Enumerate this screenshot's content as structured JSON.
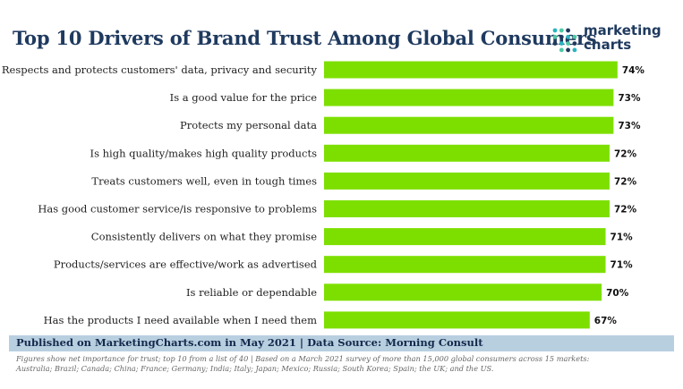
{
  "header": {
    "title": "Top 10 Drivers of Brand Trust Among Global Consumers"
  },
  "logo": {
    "line1": "marketing",
    "line2": "charts",
    "dot_colors": [
      "#2bb3c0",
      "#4cc9a4",
      "#1f3a5f"
    ]
  },
  "chart_data": {
    "type": "bar",
    "orientation": "horizontal",
    "categories": [
      "Respects and protects customers' data, privacy and security",
      "Is a good value for the price",
      "Protects my personal data",
      "Is high quality/makes high quality products",
      "Treats customers well, even in tough times",
      "Has good customer service/is responsive to problems",
      "Consistently delivers on what they promise",
      "Products/services are effective/work as advertised",
      "Is reliable or dependable",
      "Has the products I need available when I need them"
    ],
    "values": [
      74,
      73,
      73,
      72,
      72,
      72,
      71,
      71,
      70,
      67
    ],
    "value_labels": [
      "74%",
      "73%",
      "73%",
      "72%",
      "72%",
      "72%",
      "71%",
      "71%",
      "70%",
      "67%"
    ],
    "xlim": [
      0,
      100
    ],
    "grid": false,
    "bar_color": "#7ddf00"
  },
  "footer": {
    "source": "Published on MarketingCharts.com in May 2021 | Data Source: Morning Consult",
    "note_line1": "Figures show net importance for trust; top 10 from a list of 40 | Based on a March 2021 survey of more than 15,000 global consumers across 15 markets:",
    "note_line2": "Australia; Brazil; Canada; China; France; Germany; India; Italy; Japan; Mexico; Russia; South Korea; Spain; the UK; and the US."
  },
  "colors": {
    "title": "#1f3a5f",
    "band": "#b8cfe0"
  }
}
